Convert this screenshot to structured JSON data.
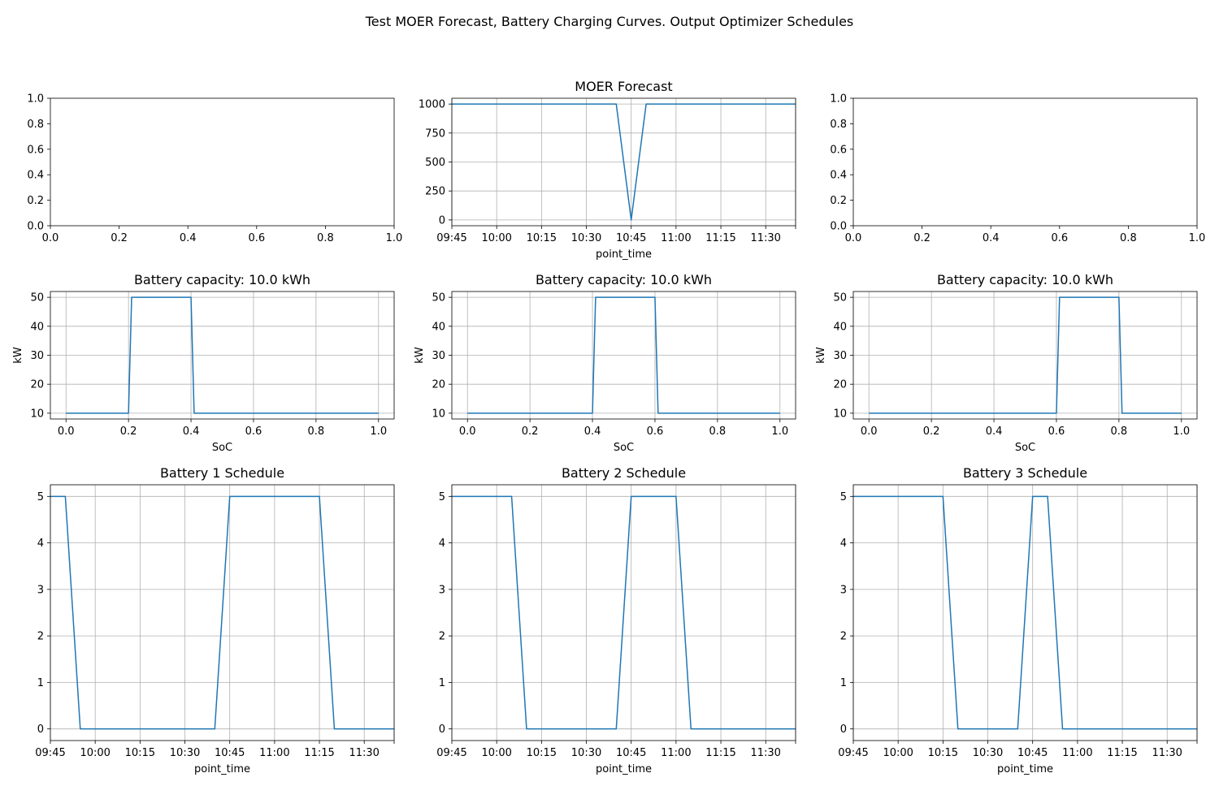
{
  "figure": {
    "title": "Test MOER Forecast, Battery Charging Curves. Output Optimizer Schedules"
  },
  "colors": {
    "series": "#1f77b4",
    "grid": "#b0b0b0",
    "axis": "#000000"
  },
  "chart_data": [
    {
      "id": "empty-left",
      "type": "line",
      "title": "",
      "xlabel": "",
      "ylabel": "",
      "xlim": [
        0,
        1
      ],
      "ylim": [
        0,
        1
      ],
      "grid": false,
      "x_ticks": [
        0,
        0.2,
        0.4,
        0.6,
        0.8,
        1.0
      ],
      "x_tick_labels": [
        "0.0",
        "0.2",
        "0.4",
        "0.6",
        "0.8",
        "1.0"
      ],
      "y_ticks": [
        0,
        0.2,
        0.4,
        0.6,
        0.8,
        1.0
      ],
      "y_tick_labels": [
        "0.0",
        "0.2",
        "0.4",
        "0.6",
        "0.8",
        "1.0"
      ],
      "series": []
    },
    {
      "id": "moer-forecast",
      "type": "line",
      "title": "MOER Forecast",
      "xlabel": "point_time",
      "ylabel": "",
      "xlim": [
        "09:45",
        "11:40"
      ],
      "ylim": [
        -50,
        1050
      ],
      "grid": true,
      "x_ticks": [
        "09:45",
        "10:00",
        "10:15",
        "10:30",
        "10:45",
        "11:00",
        "11:15",
        "11:30",
        "11:40"
      ],
      "x_tick_labels": [
        "09:45",
        "10:00",
        "10:15",
        "10:30",
        "10:45",
        "11:00",
        "11:15",
        "11:30",
        ""
      ],
      "y_ticks": [
        0,
        250,
        500,
        750,
        1000
      ],
      "y_tick_labels": [
        "0",
        "250",
        "500",
        "750",
        "1000"
      ],
      "series": [
        {
          "x": [
            "09:45",
            "10:40",
            "10:45",
            "10:50",
            "11:40"
          ],
          "y": [
            1000,
            1000,
            0,
            1000,
            1000
          ]
        }
      ]
    },
    {
      "id": "empty-right",
      "type": "line",
      "title": "",
      "xlabel": "",
      "ylabel": "",
      "xlim": [
        0,
        1
      ],
      "ylim": [
        0,
        1
      ],
      "grid": false,
      "x_ticks": [
        0,
        0.2,
        0.4,
        0.6,
        0.8,
        1.0
      ],
      "x_tick_labels": [
        "0.0",
        "0.2",
        "0.4",
        "0.6",
        "0.8",
        "1.0"
      ],
      "y_ticks": [
        0,
        0.2,
        0.4,
        0.6,
        0.8,
        1.0
      ],
      "y_tick_labels": [
        "0.0",
        "0.2",
        "0.4",
        "0.6",
        "0.8",
        "1.0"
      ],
      "series": []
    },
    {
      "id": "battery-1-curve",
      "type": "line",
      "title": "Battery capacity: 10.0 kWh",
      "xlabel": "SoC",
      "ylabel": "kW",
      "xlim": [
        -0.05,
        1.05
      ],
      "ylim": [
        8,
        52
      ],
      "grid": true,
      "x_ticks": [
        0,
        0.2,
        0.4,
        0.6,
        0.8,
        1.0
      ],
      "x_tick_labels": [
        "0.0",
        "0.2",
        "0.4",
        "0.6",
        "0.8",
        "1.0"
      ],
      "y_ticks": [
        10,
        20,
        30,
        40,
        50
      ],
      "y_tick_labels": [
        "10",
        "20",
        "30",
        "40",
        "50"
      ],
      "series": [
        {
          "x": [
            0,
            0.2,
            0.21,
            0.4,
            0.41,
            1.0
          ],
          "y": [
            10,
            10,
            50,
            50,
            10,
            10
          ]
        }
      ]
    },
    {
      "id": "battery-2-curve",
      "type": "line",
      "title": "Battery capacity: 10.0 kWh",
      "xlabel": "SoC",
      "ylabel": "kW",
      "xlim": [
        -0.05,
        1.05
      ],
      "ylim": [
        8,
        52
      ],
      "grid": true,
      "x_ticks": [
        0,
        0.2,
        0.4,
        0.6,
        0.8,
        1.0
      ],
      "x_tick_labels": [
        "0.0",
        "0.2",
        "0.4",
        "0.6",
        "0.8",
        "1.0"
      ],
      "y_ticks": [
        10,
        20,
        30,
        40,
        50
      ],
      "y_tick_labels": [
        "10",
        "20",
        "30",
        "40",
        "50"
      ],
      "series": [
        {
          "x": [
            0,
            0.4,
            0.41,
            0.6,
            0.61,
            1.0
          ],
          "y": [
            10,
            10,
            50,
            50,
            10,
            10
          ]
        }
      ]
    },
    {
      "id": "battery-3-curve",
      "type": "line",
      "title": "Battery capacity: 10.0 kWh",
      "xlabel": "SoC",
      "ylabel": "kW",
      "xlim": [
        -0.05,
        1.05
      ],
      "ylim": [
        8,
        52
      ],
      "grid": true,
      "x_ticks": [
        0,
        0.2,
        0.4,
        0.6,
        0.8,
        1.0
      ],
      "x_tick_labels": [
        "0.0",
        "0.2",
        "0.4",
        "0.6",
        "0.8",
        "1.0"
      ],
      "y_ticks": [
        10,
        20,
        30,
        40,
        50
      ],
      "y_tick_labels": [
        "10",
        "20",
        "30",
        "40",
        "50"
      ],
      "series": [
        {
          "x": [
            0,
            0.6,
            0.61,
            0.8,
            0.81,
            1.0
          ],
          "y": [
            10,
            10,
            50,
            50,
            10,
            10
          ]
        }
      ]
    },
    {
      "id": "battery-1-schedule",
      "type": "line",
      "title": "Battery 1 Schedule",
      "xlabel": "point_time",
      "ylabel": "",
      "xlim": [
        "09:45",
        "11:40"
      ],
      "ylim": [
        -0.25,
        5.25
      ],
      "grid": true,
      "x_ticks": [
        "09:45",
        "10:00",
        "10:15",
        "10:30",
        "10:45",
        "11:00",
        "11:15",
        "11:30",
        "11:40"
      ],
      "x_tick_labels": [
        "09:45",
        "10:00",
        "10:15",
        "10:30",
        "10:45",
        "11:00",
        "11:15",
        "11:30",
        ""
      ],
      "y_ticks": [
        0,
        1,
        2,
        3,
        4,
        5
      ],
      "y_tick_labels": [
        "0",
        "1",
        "2",
        "3",
        "4",
        "5"
      ],
      "series": [
        {
          "x": [
            "09:45",
            "09:50",
            "09:55",
            "10:40",
            "10:45",
            "11:15",
            "11:20",
            "11:40"
          ],
          "y": [
            5,
            5,
            0,
            0,
            5,
            5,
            0,
            0
          ]
        }
      ]
    },
    {
      "id": "battery-2-schedule",
      "type": "line",
      "title": "Battery 2 Schedule",
      "xlabel": "point_time",
      "ylabel": "",
      "xlim": [
        "09:45",
        "11:40"
      ],
      "ylim": [
        -0.25,
        5.25
      ],
      "grid": true,
      "x_ticks": [
        "09:45",
        "10:00",
        "10:15",
        "10:30",
        "10:45",
        "11:00",
        "11:15",
        "11:30",
        "11:40"
      ],
      "x_tick_labels": [
        "09:45",
        "10:00",
        "10:15",
        "10:30",
        "10:45",
        "11:00",
        "11:15",
        "11:30",
        ""
      ],
      "y_ticks": [
        0,
        1,
        2,
        3,
        4,
        5
      ],
      "y_tick_labels": [
        "0",
        "1",
        "2",
        "3",
        "4",
        "5"
      ],
      "series": [
        {
          "x": [
            "09:45",
            "10:05",
            "10:10",
            "10:40",
            "10:45",
            "11:00",
            "11:05",
            "11:40"
          ],
          "y": [
            5,
            5,
            0,
            0,
            5,
            5,
            0,
            0
          ]
        }
      ]
    },
    {
      "id": "battery-3-schedule",
      "type": "line",
      "title": "Battery 3 Schedule",
      "xlabel": "point_time",
      "ylabel": "",
      "xlim": [
        "09:45",
        "11:40"
      ],
      "ylim": [
        -0.25,
        5.25
      ],
      "grid": true,
      "x_ticks": [
        "09:45",
        "10:00",
        "10:15",
        "10:30",
        "10:45",
        "11:00",
        "11:15",
        "11:30",
        "11:40"
      ],
      "x_tick_labels": [
        "09:45",
        "10:00",
        "10:15",
        "10:30",
        "10:45",
        "11:00",
        "11:15",
        "11:30",
        ""
      ],
      "y_ticks": [
        0,
        1,
        2,
        3,
        4,
        5
      ],
      "y_tick_labels": [
        "0",
        "1",
        "2",
        "3",
        "4",
        "5"
      ],
      "series": [
        {
          "x": [
            "09:45",
            "10:15",
            "10:20",
            "10:40",
            "10:45",
            "10:50",
            "10:55",
            "11:40"
          ],
          "y": [
            5,
            5,
            0,
            0,
            5,
            5,
            0,
            0
          ]
        }
      ]
    }
  ]
}
